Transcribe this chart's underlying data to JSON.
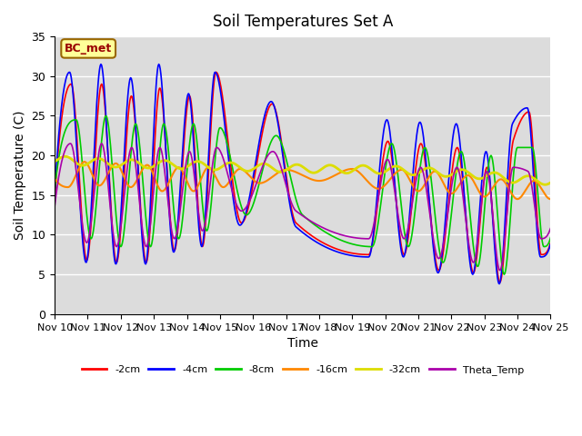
{
  "title": "Soil Temperatures Set A",
  "xlabel": "Time",
  "ylabel": "Soil Temperature (C)",
  "annotation": "BC_met",
  "xlim_labels": [
    "Nov 10",
    "Nov 11",
    "Nov 12",
    "Nov 13",
    "Nov 14",
    "Nov 15",
    "Nov 16",
    "Nov 17",
    "Nov 18",
    "Nov 19",
    "Nov 20",
    "Nov 21",
    "Nov 22",
    "Nov 23",
    "Nov 24",
    "Nov 25"
  ],
  "ylim": [
    0,
    35
  ],
  "yticks": [
    0,
    5,
    10,
    15,
    20,
    25,
    30,
    35
  ],
  "series": {
    "-2cm": {
      "color": "#ff0000",
      "lw": 1.2
    },
    "-4cm": {
      "color": "#0000ff",
      "lw": 1.2
    },
    "-8cm": {
      "color": "#00cc00",
      "lw": 1.2
    },
    "-16cm": {
      "color": "#ff8800",
      "lw": 1.5
    },
    "-32cm": {
      "color": "#dddd00",
      "lw": 2.0
    },
    "Theta_Temp": {
      "color": "#aa00aa",
      "lw": 1.2
    }
  },
  "bg_color": "#dcdcdc",
  "fig_bg": "#ffffff",
  "grid_color": "#ffffff",
  "annotation_box_color": "#ffff99",
  "annotation_text_color": "#990000",
  "annotation_border_color": "#996600",
  "num_points": 720
}
